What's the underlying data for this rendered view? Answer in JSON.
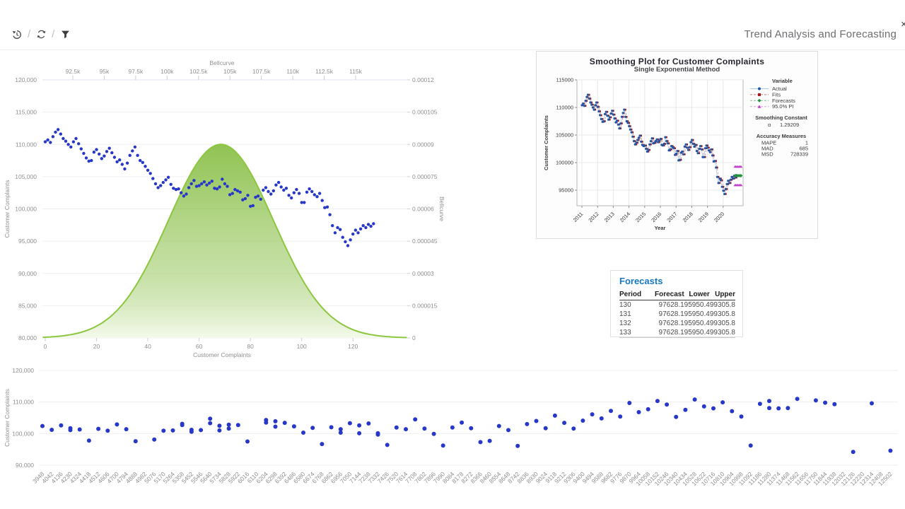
{
  "page": {
    "title": "Trend Analysis and Forecasting",
    "corner_icon": "✕"
  },
  "toolbar": {
    "separator": "/",
    "icons": [
      "history-icon",
      "refresh-icon",
      "filter-icon"
    ]
  },
  "main_chart": {
    "top_axis": {
      "title": "Bellcurve",
      "tick_values": [
        92500,
        95000,
        97500,
        100000,
        102500,
        105000,
        107500,
        110000,
        112500,
        115000
      ],
      "tick_labels": [
        "92.5k",
        "95k",
        "97.5k",
        "100k",
        "102.5k",
        "105k",
        "107.5k",
        "110k",
        "112.5k",
        "115k"
      ]
    },
    "left_axis": {
      "title": "Customer Complaints",
      "tick_values": [
        120000,
        115000,
        110000,
        105000,
        100000,
        95000,
        90000,
        85000,
        80000
      ],
      "tick_labels": [
        "120,000",
        "115,000",
        "110,000",
        "105,000",
        "100,000",
        "95,000",
        "90,000",
        "85,000",
        "80,000"
      ]
    },
    "right_axis": {
      "title": "Bellcurve",
      "tick_values": [
        0.00012,
        0.000105,
        9e-05,
        7.5e-05,
        6e-05,
        4.5e-05,
        3e-05,
        1.5e-05,
        0
      ],
      "tick_labels": [
        "0.00012",
        "0.000105",
        "0.00009",
        "0.000075",
        "0.00006",
        "0.000045",
        "0.00003",
        "0.000015",
        "0"
      ]
    },
    "bottom_axis": {
      "title": "Customer Complaints",
      "tick_values": [
        0,
        20,
        40,
        60,
        80,
        100,
        120
      ],
      "tick_labels": [
        "0",
        "20",
        "40",
        "60",
        "80",
        "100",
        "120"
      ]
    }
  },
  "smoothing_panel": {
    "title": "Smoothing Plot for Customer Complaints",
    "subtitle": "Single Exponential Method",
    "xlabel": "Year",
    "ylabel": "Customer Complaints",
    "ytick_values": [
      115000,
      110000,
      105000,
      100000,
      95000
    ],
    "ytick_labels": [
      "115000",
      "110000",
      "105000",
      "100000",
      "95000"
    ],
    "years": [
      "2011",
      "2012",
      "2013",
      "2014",
      "2015",
      "2016",
      "2017",
      "2018",
      "2019",
      "2020"
    ],
    "legend": {
      "header": "Variable",
      "items": [
        {
          "label": "Actual",
          "color": "#2057a7",
          "line": "#a9c7e9",
          "marker": "circle",
          "dash": "solid"
        },
        {
          "label": "Fits",
          "color": "#9b1b1b",
          "line": "#c4807d",
          "marker": "square",
          "dash": "dashed"
        },
        {
          "label": "Forecasts",
          "color": "#22913f",
          "line": "#7fc190",
          "marker": "diamond",
          "dash": "dashed"
        },
        {
          "label": "95.0% PI",
          "color": "#bf3fc9",
          "line": "#d79ddd",
          "marker": "triangle",
          "dash": "dashed"
        }
      ]
    },
    "smoothing_constant": {
      "header": "Smoothing Constant",
      "alpha_label": "α",
      "alpha_value": "1.29209"
    },
    "accuracy": {
      "header": "Accuracy Measures",
      "rows": [
        [
          "MAPE",
          "1"
        ],
        [
          "MAD",
          "685"
        ],
        [
          "MSD",
          "728339"
        ]
      ]
    }
  },
  "forecasts_table": {
    "title": "Forecasts",
    "columns": [
      "Period",
      "Forecast",
      "Lower",
      "Upper"
    ],
    "rows": [
      [
        "130",
        "97628.1",
        "95950.4",
        "99305.8"
      ],
      [
        "131",
        "97628.1",
        "95950.4",
        "99305.8"
      ],
      [
        "132",
        "97628.1",
        "95950.4",
        "99305.8"
      ],
      [
        "133",
        "97628.1",
        "95950.4",
        "99305.8"
      ]
    ]
  },
  "bottom_chart": {
    "ylabel": "Customer Complaints",
    "ytick_values": [
      120000,
      110000,
      100000,
      90000
    ],
    "ytick_labels": [
      "120,000",
      "110,000",
      "100,000",
      "90,000"
    ]
  },
  "colors": {
    "scatter_blue": "#2737c8",
    "bell_stroke": "#8dc63f",
    "bell_fill_top": "#8bc04a",
    "bell_fill_bottom": "#f3f9ea",
    "grid": "#efefef",
    "axis_line": "#e0e3ee",
    "accent_blue": "#1778c2"
  },
  "chart_data": [
    {
      "type": "scatter",
      "title": "",
      "xlabel": "Customer Complaints",
      "ylabel": "Customer Complaints",
      "y2label": "Bellcurve",
      "xlim": [
        0,
        141
      ],
      "ylim": [
        80000,
        120000
      ],
      "y2lim": [
        0,
        0.00012
      ],
      "grid": true,
      "series": [
        {
          "name": "Customer Complaints",
          "type": "scatter",
          "x_start": 0,
          "values": [
            110400,
            110700,
            110300,
            111200,
            111900,
            112300,
            111600,
            110900,
            110500,
            110000,
            109600,
            110400,
            110900,
            110100,
            109300,
            108600,
            107900,
            107400,
            107500,
            108800,
            109200,
            108500,
            107800,
            108200,
            108900,
            109400,
            108700,
            108000,
            107300,
            107600,
            106900,
            106200,
            107100,
            108300,
            109000,
            109600,
            108300,
            107500,
            107200,
            106600,
            106000,
            105500,
            104700,
            103900,
            103300,
            103600,
            104100,
            104500,
            104900,
            103800,
            103200,
            103000,
            103100,
            102500,
            102000,
            102300,
            103300,
            103900,
            104400,
            103500,
            103600,
            103900,
            104200,
            103700,
            104000,
            104300,
            103200,
            103100,
            103400,
            104600,
            103900,
            103500,
            102200,
            102400,
            103000,
            102800,
            102600,
            101400,
            101600,
            102100,
            100400,
            100500,
            101800,
            102000,
            101500,
            102900,
            103300,
            102700,
            102300,
            102800,
            103700,
            104100,
            103400,
            102900,
            103200,
            102100,
            101700,
            102500,
            103000,
            102400,
            101000,
            101000,
            102600,
            103100,
            102700,
            102200,
            101900,
            102400,
            101300,
            100200,
            100300,
            99100,
            97400,
            96300,
            97100,
            96800,
            95600,
            94900,
            94300,
            95200,
            96100,
            96700,
            96300,
            96900,
            97400,
            97100,
            97600,
            97300,
            97700
          ]
        },
        {
          "name": "Bellcurve",
          "type": "area",
          "curve": "gaussian",
          "center": 68.5,
          "sigma": 20.5,
          "peak": 9e-05
        }
      ]
    },
    {
      "type": "line",
      "title": "Smoothing Plot for Customer Complaints",
      "subtitle": "Single Exponential Method",
      "xlabel": "Year",
      "ylabel": "Customer Complaints",
      "ylim": [
        92000,
        115000
      ],
      "x_years": [
        2011,
        2020
      ],
      "series_note": "Actual = chart_data[0].series[0].values; Fits = smoothed (previous actual)",
      "alpha": 1.29209,
      "MAPE": 1,
      "MAD": 685,
      "MSD": 728339,
      "forecast": {
        "periods": [
          130,
          131,
          132,
          133
        ],
        "value": 97628.1,
        "lower": 95950.4,
        "upper": 99305.8
      }
    },
    {
      "type": "scatter",
      "ylabel": "Customer Complaints",
      "ylim": [
        90000,
        120000
      ],
      "grid": true,
      "categories": [
        3948,
        4042,
        4136,
        4230,
        4324,
        4418,
        4512,
        4606,
        4700,
        4794,
        4888,
        4982,
        5076,
        5170,
        5264,
        5358,
        5452,
        5546,
        5640,
        5734,
        5828,
        5922,
        6016,
        6110,
        6204,
        6298,
        6392,
        6486,
        6580,
        6674,
        6768,
        6862,
        6956,
        7050,
        7144,
        7238,
        7332,
        7426,
        7520,
        7614,
        7708,
        7802,
        7896,
        7990,
        8084,
        8178,
        8272,
        8366,
        8460,
        8554,
        8648,
        8742,
        8836,
        8930,
        9024,
        9118,
        9212,
        9306,
        9400,
        9494,
        9588,
        9682,
        9776,
        9870,
        9964,
        10058,
        10152,
        10246,
        10340,
        10434,
        10528,
        10622,
        10716,
        10810,
        10904,
        10998,
        11092,
        11186,
        11280,
        11374,
        11468,
        11562,
        11656,
        11750,
        11844,
        11938,
        12032,
        12126,
        12220,
        12314,
        12408,
        12502
      ],
      "points": [
        [
          0,
          102400
        ],
        [
          1,
          101200
        ],
        [
          2,
          102600
        ],
        [
          3,
          101100
        ],
        [
          3,
          101700
        ],
        [
          4,
          101300
        ],
        [
          5,
          97800
        ],
        [
          6,
          101500
        ],
        [
          7,
          100900
        ],
        [
          8,
          102900
        ],
        [
          9,
          101400
        ],
        [
          10,
          97600
        ],
        [
          12,
          98100
        ],
        [
          13,
          100900
        ],
        [
          14,
          101000
        ],
        [
          15,
          103100
        ],
        [
          15,
          102700
        ],
        [
          16,
          101200
        ],
        [
          16,
          100600
        ],
        [
          17,
          101100
        ],
        [
          18,
          104700
        ],
        [
          18,
          103300
        ],
        [
          19,
          102500
        ],
        [
          19,
          101000
        ],
        [
          20,
          102800
        ],
        [
          20,
          101600
        ],
        [
          21,
          102700
        ],
        [
          22,
          97500
        ],
        [
          24,
          104300
        ],
        [
          24,
          103500
        ],
        [
          25,
          103900
        ],
        [
          25,
          102200
        ],
        [
          26,
          103400
        ],
        [
          27,
          102300
        ],
        [
          28,
          100300
        ],
        [
          29,
          101800
        ],
        [
          30,
          96700
        ],
        [
          31,
          102000
        ],
        [
          32,
          101400
        ],
        [
          32,
          100300
        ],
        [
          33,
          103300
        ],
        [
          34,
          102600
        ],
        [
          34,
          100100
        ],
        [
          35,
          103200
        ],
        [
          36,
          100100
        ],
        [
          36,
          99700
        ],
        [
          37,
          96400
        ],
        [
          38,
          101900
        ],
        [
          39,
          101400
        ],
        [
          40,
          104500
        ],
        [
          41,
          101600
        ],
        [
          42,
          99900
        ],
        [
          43,
          96200
        ],
        [
          44,
          101900
        ],
        [
          45,
          103500
        ],
        [
          46,
          101700
        ],
        [
          47,
          97300
        ],
        [
          48,
          97700
        ],
        [
          49,
          102400
        ],
        [
          50,
          101100
        ],
        [
          51,
          96100
        ],
        [
          52,
          103000
        ],
        [
          53,
          104000
        ],
        [
          54,
          101700
        ],
        [
          55,
          105700
        ],
        [
          56,
          103400
        ],
        [
          57,
          101600
        ],
        [
          58,
          104100
        ],
        [
          59,
          106100
        ],
        [
          60,
          104800
        ],
        [
          61,
          107200
        ],
        [
          62,
          105400
        ],
        [
          63,
          109700
        ],
        [
          64,
          106800
        ],
        [
          65,
          107700
        ],
        [
          66,
          110300
        ],
        [
          67,
          109200
        ],
        [
          68,
          105300
        ],
        [
          69,
          107500
        ],
        [
          70,
          110800
        ],
        [
          71,
          108600
        ],
        [
          72,
          108000
        ],
        [
          73,
          109900
        ],
        [
          74,
          107100
        ],
        [
          75,
          105400
        ],
        [
          76,
          96200
        ],
        [
          77,
          109400
        ],
        [
          78,
          110300
        ],
        [
          78,
          108100
        ],
        [
          79,
          108000
        ],
        [
          80,
          108100
        ],
        [
          81,
          111000
        ],
        [
          83,
          110500
        ],
        [
          84,
          109800
        ],
        [
          85,
          109300
        ],
        [
          87,
          94200
        ],
        [
          89,
          109600
        ],
        [
          91,
          94600
        ]
      ]
    }
  ]
}
